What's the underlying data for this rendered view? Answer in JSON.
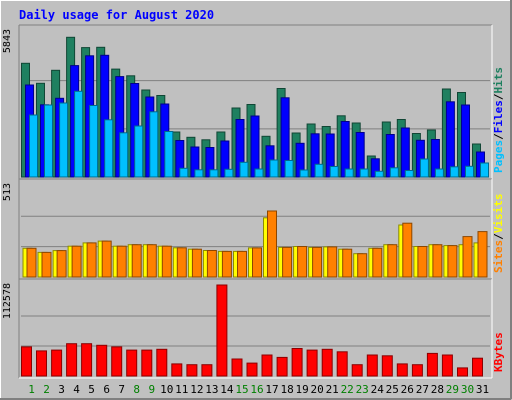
{
  "chart_data": {
    "title": "Daily usage for August 2020",
    "days": [
      "1",
      "2",
      "3",
      "4",
      "5",
      "6",
      "7",
      "8",
      "9",
      "10",
      "11",
      "12",
      "13",
      "14",
      "15",
      "16",
      "17",
      "18",
      "19",
      "20",
      "21",
      "22",
      "23",
      "24",
      "25",
      "26",
      "27",
      "28",
      "29",
      "30",
      "31"
    ],
    "weekend_days": [
      "1",
      "2",
      "8",
      "9",
      "15",
      "16",
      "22",
      "23",
      "29",
      "30"
    ],
    "panels": [
      {
        "type": "bar",
        "ymax_label": "5843",
        "ylim": [
          0,
          5843
        ],
        "grid": true,
        "legend": [
          "Pages",
          "Files",
          "Hits"
        ],
        "series": [
          {
            "name": "Hits",
            "color": "#1f8060",
            "values": [
              4550,
              3750,
              4270,
              5590,
              5180,
              5190,
              4320,
              4050,
              3480,
              3260,
              1800,
              1590,
              1490,
              1800,
              2760,
              2900,
              1630,
              3540,
              1760,
              2120,
              2020,
              2450,
              2160,
              840,
              2200,
              2300,
              1740,
              1880,
              3520,
              3380,
              1320
            ]
          },
          {
            "name": "Files",
            "color": "#0000ff",
            "values": [
              3680,
              2890,
              3150,
              4460,
              4850,
              4870,
              4020,
              3740,
              3200,
              2920,
              1460,
              1200,
              1180,
              1440,
              2300,
              2440,
              1250,
              3170,
              1350,
              1730,
              1720,
              2220,
              1780,
              730,
              1700,
              1960,
              1470,
              1500,
              3010,
              2880,
              1000
            ]
          },
          {
            "name": "Pages",
            "color": "#00c0ff",
            "values": [
              2480,
              2880,
              2960,
              3430,
              2860,
              2290,
              1770,
              2040,
              2610,
              1820,
              350,
              290,
              290,
              310,
              590,
              320,
              680,
              660,
              280,
              510,
              420,
              320,
              320,
              230,
              370,
              260,
              720,
              320,
              410,
              430,
              560
            ]
          }
        ]
      },
      {
        "type": "bar",
        "ymax_label": "513",
        "ylim": [
          0,
          513
        ],
        "grid": true,
        "legend": [
          "Sites",
          "Visits"
        ],
        "series": [
          {
            "name": "Visits",
            "color": "#ffff00",
            "values": [
              160,
              137,
              147,
              172,
              190,
              200,
              172,
              180,
              180,
              172,
              163,
              155,
              148,
              143,
              143,
              162,
              330,
              165,
              170,
              165,
              168,
              155,
              130,
              160,
              180,
              290,
              170,
              180,
              175,
              180,
              190
            ]
          },
          {
            "name": "Sites",
            "color": "#ff8000",
            "values": [
              160,
              137,
              147,
              172,
              190,
              200,
              172,
              180,
              180,
              172,
              163,
              155,
              148,
              143,
              143,
              162,
              368,
              165,
              170,
              165,
              168,
              155,
              130,
              160,
              180,
              300,
              170,
              180,
              175,
              225,
              253
            ]
          }
        ]
      },
      {
        "type": "bar",
        "ymax_label": "112578",
        "ylim": [
          0,
          112578
        ],
        "grid": true,
        "legend": [
          "KBytes"
        ],
        "series": [
          {
            "name": "KBytes",
            "color": "#ff0000",
            "values": [
              36000,
              31000,
              32000,
              40000,
              40000,
              38000,
              36000,
              32000,
              32000,
              33000,
              15000,
              14000,
              14000,
              112578,
              21000,
              16000,
              26000,
              23000,
              34000,
              32000,
              33000,
              30000,
              14000,
              26000,
              25000,
              15000,
              14000,
              28000,
              26000,
              10000,
              22000
            ]
          }
        ]
      }
    ]
  }
}
